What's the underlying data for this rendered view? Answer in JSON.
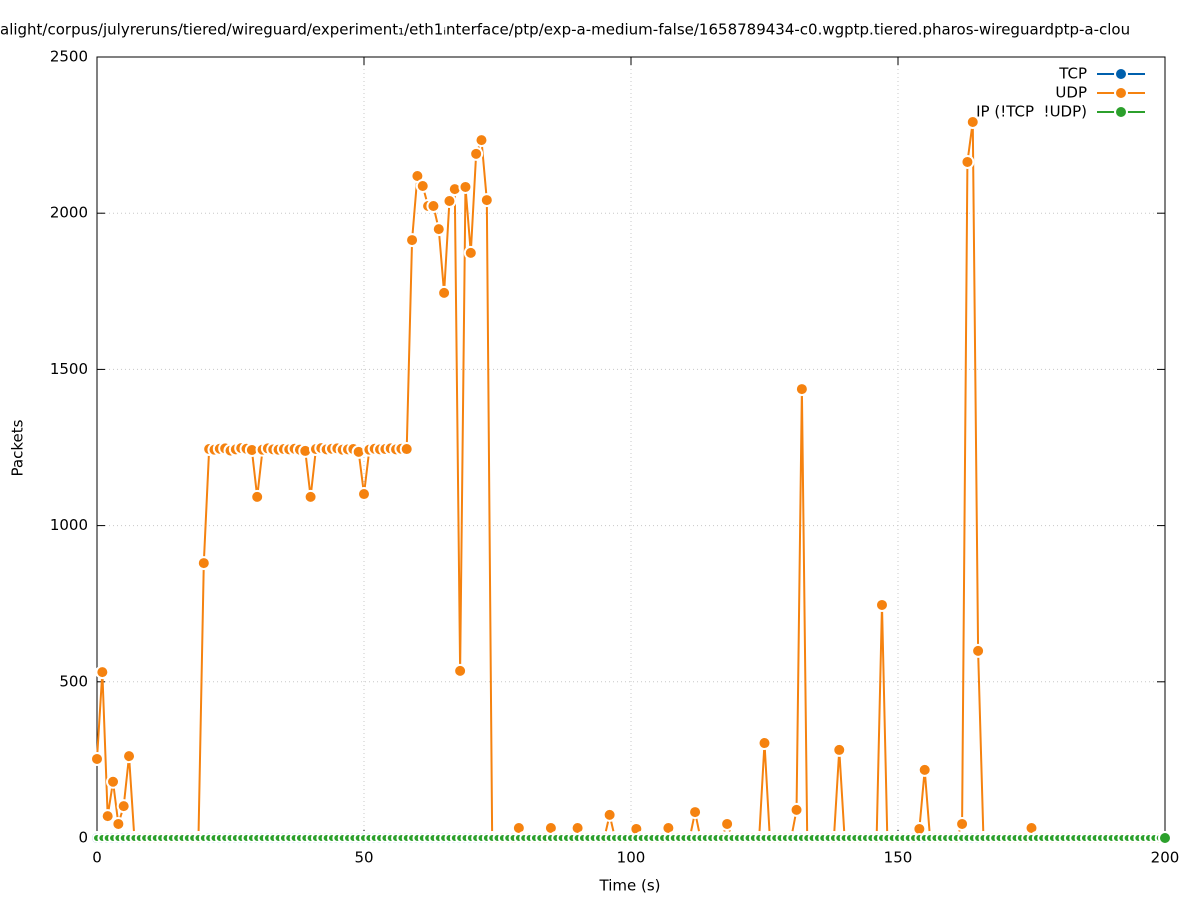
{
  "chart_data": {
    "type": "line",
    "title": "alight/corpus/julyreruns/tiered/wireguard/experiment₁/eth1ᵢnterface/ptp/exp-a-medium-false/1658789434-c0.wgptp.tiered.pharos-wireguardptp-a-clou",
    "x_label": "Time (s)",
    "y_label": "Packets",
    "x": [
      0,
      1,
      2,
      3,
      4,
      5,
      6,
      7,
      8,
      9,
      10,
      11,
      12,
      13,
      14,
      15,
      16,
      17,
      18,
      19,
      20,
      21,
      22,
      23,
      24,
      25,
      26,
      27,
      28,
      29,
      30,
      31,
      32,
      33,
      34,
      35,
      36,
      37,
      38,
      39,
      40,
      41,
      42,
      43,
      44,
      45,
      46,
      47,
      48,
      49,
      50,
      51,
      52,
      53,
      54,
      55,
      56,
      57,
      58,
      59,
      60,
      61,
      62,
      63,
      64,
      65,
      66,
      67,
      68,
      69,
      70,
      71,
      72,
      73,
      74,
      75,
      76,
      77,
      78,
      79,
      80,
      81,
      82,
      83,
      84,
      85,
      86,
      87,
      88,
      89,
      90,
      91,
      92,
      93,
      94,
      95,
      96,
      97,
      98,
      99,
      100,
      101,
      102,
      103,
      104,
      105,
      106,
      107,
      108,
      109,
      110,
      111,
      112,
      113,
      114,
      115,
      116,
      117,
      118,
      119,
      120,
      121,
      122,
      123,
      124,
      125,
      126,
      127,
      128,
      129,
      130,
      131,
      132,
      133,
      134,
      135,
      136,
      137,
      138,
      139,
      140,
      141,
      142,
      143,
      144,
      145,
      146,
      147,
      148,
      149,
      150,
      151,
      152,
      153,
      154,
      155,
      156,
      157,
      158,
      159,
      160,
      161,
      162,
      163,
      164,
      165,
      166,
      167,
      168,
      169,
      170,
      171,
      172,
      173,
      174,
      175,
      176,
      177,
      178,
      179,
      180,
      181,
      182,
      183,
      184,
      185,
      186,
      187,
      188,
      189,
      190,
      191,
      192,
      193,
      194,
      195,
      196,
      197,
      198,
      199,
      200
    ],
    "series": [
      {
        "name": "TCP",
        "color": "#0060ad",
        "values": [
          0,
          0,
          0,
          0,
          0,
          0,
          0,
          0,
          0,
          0,
          0,
          0,
          0,
          0,
          0,
          0,
          0,
          0,
          0,
          0,
          0,
          0,
          0,
          0,
          0,
          0,
          0,
          0,
          0,
          0,
          0,
          0,
          0,
          0,
          0,
          0,
          0,
          0,
          0,
          0,
          0,
          0,
          0,
          0,
          0,
          0,
          0,
          0,
          0,
          0,
          0,
          0,
          0,
          0,
          0,
          0,
          0,
          0,
          0,
          0,
          0,
          0,
          0,
          0,
          0,
          0,
          0,
          0,
          0,
          0,
          0,
          0,
          0,
          0,
          0,
          0,
          0,
          0,
          0,
          0,
          0,
          0,
          0,
          0,
          0,
          0,
          0,
          0,
          0,
          0,
          0,
          0,
          0,
          0,
          0,
          0,
          0,
          0,
          0,
          0,
          0,
          0,
          0,
          0,
          0,
          0,
          0,
          0,
          0,
          0,
          0,
          0,
          0,
          0,
          0,
          0,
          0,
          0,
          0,
          0,
          0,
          0,
          0,
          0,
          0,
          0,
          0,
          0,
          0,
          0,
          0,
          0,
          0,
          0,
          0,
          0,
          0,
          0,
          0,
          0,
          0,
          0,
          0,
          0,
          0,
          0,
          0,
          0,
          0,
          0,
          0,
          0,
          0,
          0,
          0,
          0,
          0,
          0,
          0,
          0,
          0,
          0,
          0,
          0,
          0,
          0,
          0,
          0,
          0,
          0,
          0,
          0,
          0,
          0,
          0,
          0,
          0,
          0,
          0,
          0,
          0,
          0,
          0,
          0,
          0,
          0,
          0,
          0,
          0,
          0,
          0,
          0,
          0,
          0,
          0,
          0,
          0,
          0,
          0,
          0,
          0
        ]
      },
      {
        "name": "UDP",
        "color": "#f5820f",
        "values": [
          253,
          531,
          70,
          180,
          45,
          102,
          262,
          0,
          0,
          0,
          0,
          0,
          0,
          0,
          0,
          0,
          0,
          0,
          0,
          0,
          880,
          1245,
          1243,
          1246,
          1247,
          1240,
          1244,
          1248,
          1246,
          1242,
          1092,
          1243,
          1247,
          1244,
          1243,
          1245,
          1244,
          1246,
          1243,
          1239,
          1092,
          1245,
          1248,
          1244,
          1246,
          1247,
          1243,
          1244,
          1245,
          1236,
          1101,
          1243,
          1246,
          1244,
          1245,
          1247,
          1244,
          1246,
          1245,
          1914,
          2119,
          2087,
          2023,
          2023,
          1949,
          1745,
          2039,
          2077,
          535,
          2084,
          1873,
          2190,
          2234,
          2042,
          0,
          0,
          0,
          0,
          0,
          32,
          0,
          0,
          0,
          0,
          0,
          32,
          0,
          0,
          0,
          0,
          32,
          0,
          0,
          0,
          0,
          0,
          74,
          0,
          0,
          0,
          0,
          29,
          0,
          0,
          0,
          0,
          0,
          32,
          0,
          0,
          0,
          0,
          83,
          0,
          0,
          0,
          0,
          0,
          45,
          0,
          0,
          0,
          0,
          0,
          0,
          304,
          0,
          0,
          0,
          0,
          0,
          90,
          1437,
          0,
          0,
          0,
          0,
          0,
          0,
          282,
          0,
          0,
          0,
          0,
          0,
          0,
          0,
          746,
          0,
          0,
          0,
          0,
          0,
          0,
          29,
          218,
          0,
          0,
          0,
          0,
          0,
          0,
          45,
          2164,
          2292,
          599,
          0,
          0,
          0,
          0,
          0,
          0,
          0,
          0,
          0,
          32,
          0,
          0,
          0,
          0,
          0,
          0,
          0,
          0,
          0,
          0,
          0,
          0,
          0,
          0,
          0,
          0,
          0,
          0,
          0,
          0,
          0,
          0,
          0,
          0,
          0
        ]
      },
      {
        "name": "IP (!TCP  !UDP)",
        "color": "#2ca02c",
        "values": [
          0,
          0,
          0,
          0,
          0,
          0,
          0,
          0,
          0,
          0,
          0,
          0,
          0,
          0,
          0,
          0,
          0,
          0,
          0,
          0,
          0,
          0,
          0,
          0,
          0,
          0,
          0,
          0,
          0,
          0,
          0,
          0,
          0,
          0,
          0,
          0,
          0,
          0,
          0,
          0,
          0,
          0,
          0,
          0,
          0,
          0,
          0,
          0,
          0,
          0,
          0,
          0,
          0,
          0,
          0,
          0,
          0,
          0,
          0,
          0,
          0,
          0,
          0,
          0,
          0,
          0,
          0,
          0,
          0,
          0,
          0,
          0,
          0,
          0,
          0,
          0,
          0,
          0,
          0,
          0,
          0,
          0,
          0,
          0,
          0,
          0,
          0,
          0,
          0,
          0,
          0,
          0,
          0,
          0,
          0,
          0,
          0,
          0,
          0,
          0,
          0,
          0,
          0,
          0,
          0,
          0,
          0,
          0,
          0,
          0,
          0,
          0,
          0,
          0,
          0,
          0,
          0,
          0,
          0,
          0,
          0,
          0,
          0,
          0,
          0,
          0,
          0,
          0,
          0,
          0,
          0,
          0,
          0,
          0,
          0,
          0,
          0,
          0,
          0,
          0,
          0,
          0,
          0,
          0,
          0,
          0,
          0,
          0,
          0,
          0,
          0,
          0,
          0,
          0,
          0,
          0,
          0,
          0,
          0,
          0,
          0,
          0,
          0,
          0,
          0,
          0,
          0,
          0,
          0,
          0,
          0,
          0,
          0,
          0,
          0,
          0,
          0,
          0,
          0,
          0,
          0,
          0,
          0,
          0,
          0,
          0,
          0,
          0,
          0,
          0,
          0,
          0,
          0,
          0,
          0,
          0,
          0,
          0,
          0,
          0,
          0
        ]
      }
    ],
    "xlim": [
      0,
      200
    ],
    "xticks": [
      0,
      50,
      100,
      150,
      200
    ],
    "ylim": [
      0,
      2500
    ],
    "yticks": [
      0,
      500,
      1000,
      1500,
      2000,
      2500
    ],
    "grid": true,
    "legend": "top-right"
  }
}
